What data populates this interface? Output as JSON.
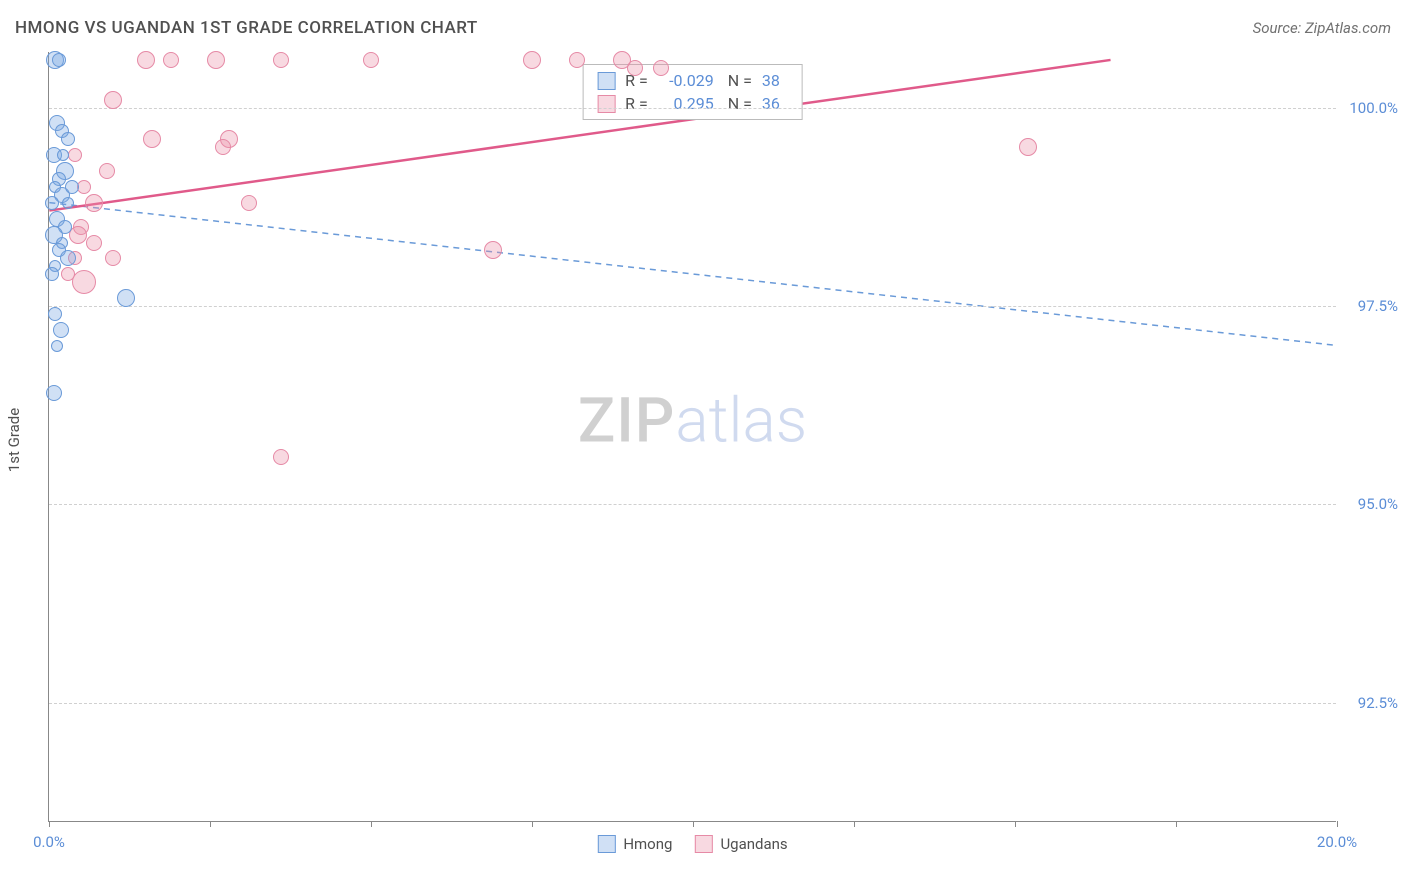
{
  "title": "HMONG VS UGANDAN 1ST GRADE CORRELATION CHART",
  "source": "Source: ZipAtlas.com",
  "y_axis_label": "1st Grade",
  "watermark_a": "ZIP",
  "watermark_b": "atlas",
  "colors": {
    "series1_fill": "rgba(120,165,225,0.35)",
    "series1_stroke": "#6a9ad8",
    "series2_fill": "rgba(235,145,170,0.35)",
    "series2_stroke": "#e68aa6",
    "tick_label": "#5b8dd6",
    "trend1": "#6a9ad8",
    "trend2": "#e05a8a"
  },
  "xlim": [
    0,
    20
  ],
  "ylim": [
    91.0,
    100.7
  ],
  "y_ticks": [
    {
      "v": 92.5,
      "label": "92.5%"
    },
    {
      "v": 95.0,
      "label": "95.0%"
    },
    {
      "v": 97.5,
      "label": "97.5%"
    },
    {
      "v": 100.0,
      "label": "100.0%"
    }
  ],
  "x_ticks": [
    0,
    2.5,
    5,
    7.5,
    10,
    12.5,
    15,
    17.5,
    20
  ],
  "x_labels": [
    {
      "v": 0,
      "label": "0.0%"
    },
    {
      "v": 20,
      "label": "20.0%"
    }
  ],
  "legend": [
    {
      "name": "Hmong"
    },
    {
      "name": "Ugandans"
    }
  ],
  "stats": [
    {
      "R": "-0.029",
      "N": "38"
    },
    {
      "R": "0.295",
      "N": "36"
    }
  ],
  "trend_lines": [
    {
      "series": 1,
      "x1": 0,
      "y1": 98.8,
      "x2": 20,
      "y2": 97.0,
      "dash": "6,5",
      "width": 1.5
    },
    {
      "series": 2,
      "x1": 0,
      "y1": 98.7,
      "x2": 16.5,
      "y2": 100.6,
      "dash": "",
      "width": 2.5
    }
  ],
  "scatter": {
    "series1": [
      {
        "x": 0.1,
        "y": 100.6,
        "r": 9
      },
      {
        "x": 0.15,
        "y": 100.6,
        "r": 7
      },
      {
        "x": 0.12,
        "y": 99.8,
        "r": 8
      },
      {
        "x": 0.2,
        "y": 99.7,
        "r": 7
      },
      {
        "x": 0.3,
        "y": 99.6,
        "r": 7
      },
      {
        "x": 0.08,
        "y": 99.4,
        "r": 8
      },
      {
        "x": 0.25,
        "y": 99.2,
        "r": 9
      },
      {
        "x": 0.15,
        "y": 99.1,
        "r": 7
      },
      {
        "x": 0.1,
        "y": 99.0,
        "r": 6
      },
      {
        "x": 0.2,
        "y": 98.9,
        "r": 8
      },
      {
        "x": 0.05,
        "y": 98.8,
        "r": 7
      },
      {
        "x": 0.3,
        "y": 98.8,
        "r": 6
      },
      {
        "x": 0.12,
        "y": 98.6,
        "r": 8
      },
      {
        "x": 0.25,
        "y": 98.5,
        "r": 7
      },
      {
        "x": 0.08,
        "y": 98.4,
        "r": 9
      },
      {
        "x": 0.2,
        "y": 98.3,
        "r": 6
      },
      {
        "x": 0.15,
        "y": 98.2,
        "r": 7
      },
      {
        "x": 0.3,
        "y": 98.1,
        "r": 8
      },
      {
        "x": 0.1,
        "y": 98.0,
        "r": 6
      },
      {
        "x": 0.05,
        "y": 97.9,
        "r": 7
      },
      {
        "x": 1.2,
        "y": 97.6,
        "r": 9
      },
      {
        "x": 0.1,
        "y": 97.4,
        "r": 7
      },
      {
        "x": 0.18,
        "y": 97.2,
        "r": 8
      },
      {
        "x": 0.08,
        "y": 96.4,
        "r": 8
      },
      {
        "x": 0.12,
        "y": 97.0,
        "r": 6
      },
      {
        "x": 0.22,
        "y": 99.4,
        "r": 6
      },
      {
        "x": 0.35,
        "y": 99.0,
        "r": 7
      }
    ],
    "series2": [
      {
        "x": 1.5,
        "y": 100.6,
        "r": 9
      },
      {
        "x": 1.9,
        "y": 100.6,
        "r": 8
      },
      {
        "x": 2.6,
        "y": 100.6,
        "r": 9
      },
      {
        "x": 3.6,
        "y": 100.6,
        "r": 8
      },
      {
        "x": 5.0,
        "y": 100.6,
        "r": 8
      },
      {
        "x": 7.5,
        "y": 100.6,
        "r": 9
      },
      {
        "x": 8.2,
        "y": 100.6,
        "r": 8
      },
      {
        "x": 8.9,
        "y": 100.6,
        "r": 9
      },
      {
        "x": 9.1,
        "y": 100.5,
        "r": 8
      },
      {
        "x": 9.5,
        "y": 100.5,
        "r": 8
      },
      {
        "x": 1.0,
        "y": 100.1,
        "r": 9
      },
      {
        "x": 1.6,
        "y": 99.6,
        "r": 9
      },
      {
        "x": 2.8,
        "y": 99.6,
        "r": 9
      },
      {
        "x": 2.7,
        "y": 99.5,
        "r": 8
      },
      {
        "x": 15.2,
        "y": 99.5,
        "r": 9
      },
      {
        "x": 0.9,
        "y": 99.2,
        "r": 8
      },
      {
        "x": 0.55,
        "y": 99.0,
        "r": 7
      },
      {
        "x": 0.7,
        "y": 98.8,
        "r": 9
      },
      {
        "x": 3.1,
        "y": 98.8,
        "r": 8
      },
      {
        "x": 0.4,
        "y": 99.4,
        "r": 7
      },
      {
        "x": 0.5,
        "y": 98.5,
        "r": 8
      },
      {
        "x": 0.45,
        "y": 98.4,
        "r": 9
      },
      {
        "x": 0.7,
        "y": 98.3,
        "r": 8
      },
      {
        "x": 6.9,
        "y": 98.2,
        "r": 9
      },
      {
        "x": 0.4,
        "y": 98.1,
        "r": 7
      },
      {
        "x": 1.0,
        "y": 98.1,
        "r": 8
      },
      {
        "x": 0.55,
        "y": 97.8,
        "r": 12
      },
      {
        "x": 0.3,
        "y": 97.9,
        "r": 7
      },
      {
        "x": 3.6,
        "y": 95.6,
        "r": 8
      }
    ]
  },
  "point_radius_px_scale": 1
}
